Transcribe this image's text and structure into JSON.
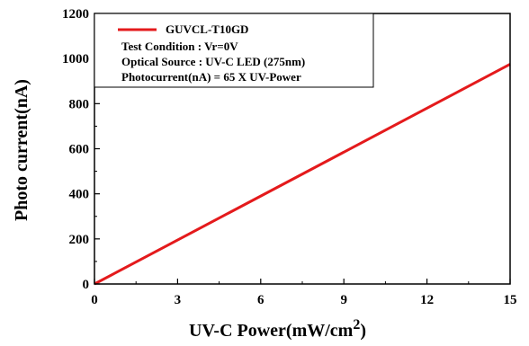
{
  "chart_data": {
    "type": "line",
    "xlabel": "UV-C Power(mW/cm",
    "xlabel_superscript": "2",
    "xlabel_suffix": ")",
    "ylabel": "Photo current(nA)",
    "xlim": [
      0,
      15
    ],
    "ylim": [
      0,
      1200
    ],
    "xticks": [
      0,
      3,
      6,
      9,
      12,
      15
    ],
    "yticks": [
      0,
      200,
      400,
      600,
      800,
      1000,
      1200
    ],
    "grid": false,
    "legend_position": "top-left",
    "series": [
      {
        "name": "GUVCL-T10GD",
        "color": "#e41a1c",
        "x": [
          0,
          15
        ],
        "y": [
          0,
          975
        ]
      }
    ],
    "annotations": [
      "Test Condition : Vr=0V",
      "Optical Source : UV-C LED (275nm)",
      "Photocurrent(nA) = 65 X UV-Power"
    ]
  }
}
